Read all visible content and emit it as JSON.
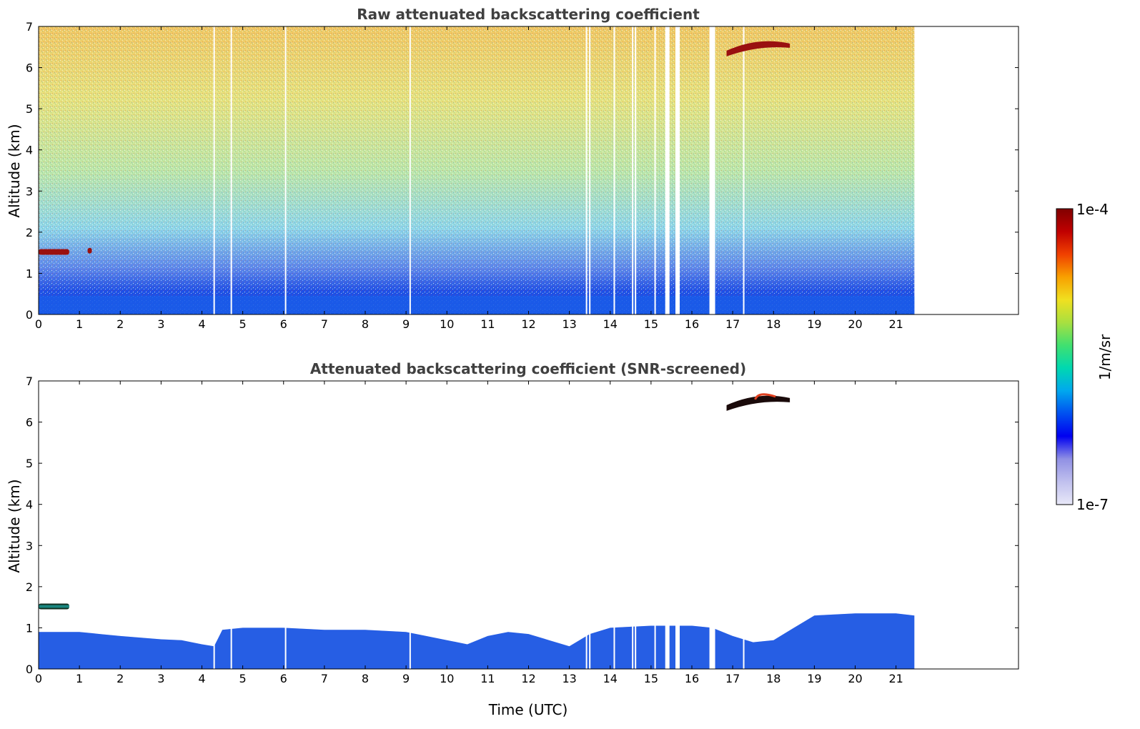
{
  "chart_data": [
    {
      "type": "heatmap",
      "title": "Raw attenuated backscattering coefficient",
      "xlabel": "",
      "ylabel": "Altitude (km)",
      "xlim": [
        0,
        24
      ],
      "ylim": [
        0,
        7
      ],
      "xticks": [
        "0",
        "1",
        "2",
        "3",
        "4",
        "5",
        "6",
        "7",
        "8",
        "9",
        "10",
        "11",
        "12",
        "13",
        "14",
        "15",
        "16",
        "17",
        "18",
        "19",
        "20",
        "21"
      ],
      "yticks": [
        "0",
        "1",
        "2",
        "3",
        "4",
        "5",
        "6",
        "7"
      ],
      "data_end_hour": 21.45,
      "gaps": [
        4.3,
        4.72,
        6.05,
        9.1,
        13.42,
        13.5,
        14.1,
        14.55,
        14.62,
        15.1,
        15.4,
        15.65,
        16.5,
        17.27
      ],
      "features": [
        {
          "name": "low cloud",
          "x": [
            0.0,
            0.75
          ],
          "y": 1.52
        },
        {
          "name": "cloud fragment",
          "x": [
            1.2,
            1.3
          ],
          "y": 1.55
        },
        {
          "name": "high cloud",
          "x": [
            16.85,
            18.4
          ],
          "y": 6.55
        }
      ]
    },
    {
      "type": "heatmap",
      "title": "Attenuated backscattering coefficient (SNR-screened)",
      "xlabel": "Time (UTC)",
      "ylabel": "Altitude (km)",
      "xlim": [
        0,
        24
      ],
      "ylim": [
        0,
        7
      ],
      "xticks": [
        "0",
        "1",
        "2",
        "3",
        "4",
        "5",
        "6",
        "7",
        "8",
        "9",
        "10",
        "11",
        "12",
        "13",
        "14",
        "15",
        "16",
        "17",
        "18",
        "19",
        "20",
        "21"
      ],
      "yticks": [
        "0",
        "1",
        "2",
        "3",
        "4",
        "5",
        "6",
        "7"
      ],
      "data_end_hour": 21.45,
      "boundary_layer_top_km": [
        [
          0,
          0.9
        ],
        [
          1,
          0.9
        ],
        [
          1.5,
          0.85
        ],
        [
          2,
          0.8
        ],
        [
          3,
          0.72
        ],
        [
          3.5,
          0.7
        ],
        [
          4,
          0.6
        ],
        [
          4.3,
          0.55
        ],
        [
          4.5,
          0.95
        ],
        [
          5,
          1.0
        ],
        [
          6,
          1.0
        ],
        [
          7,
          0.95
        ],
        [
          8,
          0.95
        ],
        [
          9,
          0.9
        ],
        [
          10,
          0.7
        ],
        [
          10.5,
          0.6
        ],
        [
          11,
          0.8
        ],
        [
          11.5,
          0.9
        ],
        [
          12,
          0.85
        ],
        [
          12.5,
          0.7
        ],
        [
          13,
          0.55
        ],
        [
          13.5,
          0.85
        ],
        [
          14,
          1.0
        ],
        [
          15,
          1.05
        ],
        [
          15.5,
          1.05
        ],
        [
          16,
          1.05
        ],
        [
          16.5,
          1.0
        ],
        [
          17,
          0.8
        ],
        [
          17.5,
          0.65
        ],
        [
          18,
          0.7
        ],
        [
          18.5,
          1.0
        ],
        [
          19,
          1.3
        ],
        [
          20,
          1.35
        ],
        [
          21,
          1.35
        ],
        [
          21.45,
          1.3
        ]
      ],
      "features": [
        {
          "name": "low cloud",
          "x": [
            0.0,
            0.75
          ],
          "y": 1.52
        },
        {
          "name": "high cloud",
          "x": [
            16.85,
            18.4
          ],
          "y": 6.55
        }
      ]
    }
  ],
  "colorbar": {
    "max_label": "1e-4",
    "min_label": "1e-7",
    "unit": "1/m/sr",
    "colors": [
      "#e8e8f8",
      "#c0c0ee",
      "#9090e4",
      "#0000f0",
      "#0050f0",
      "#00a8ee",
      "#00d8b0",
      "#40e070",
      "#a8e040",
      "#f0e020",
      "#f8a000",
      "#f04000",
      "#c00000",
      "#800000"
    ]
  }
}
